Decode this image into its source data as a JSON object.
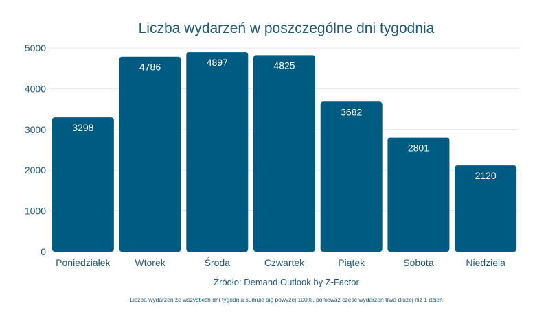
{
  "chart_data": {
    "type": "bar",
    "title": "Liczba wydarzeń w poszczególne dni tygodnia",
    "categories": [
      "Poniedziałek",
      "Wtorek",
      "Środa",
      "Czwartek",
      "Piątek",
      "Sobota",
      "Niedziela"
    ],
    "values": [
      3298,
      4786,
      4897,
      4825,
      3682,
      2801,
      2120
    ],
    "y_ticks": [
      0,
      1000,
      2000,
      3000,
      4000,
      5000
    ],
    "ylim": [
      0,
      5000
    ],
    "xlabel": "",
    "ylabel": "",
    "grid": true,
    "bar_color": "#005b82",
    "source": "Źródło: Demand Outlook by Z-Factor",
    "footnote": "Liczba wydarzeń ze wszystkich dni tygodnia sumuje się powyżej 100%, ponieważ część wydarzeń trwa dłużej niż 1 dzień"
  }
}
